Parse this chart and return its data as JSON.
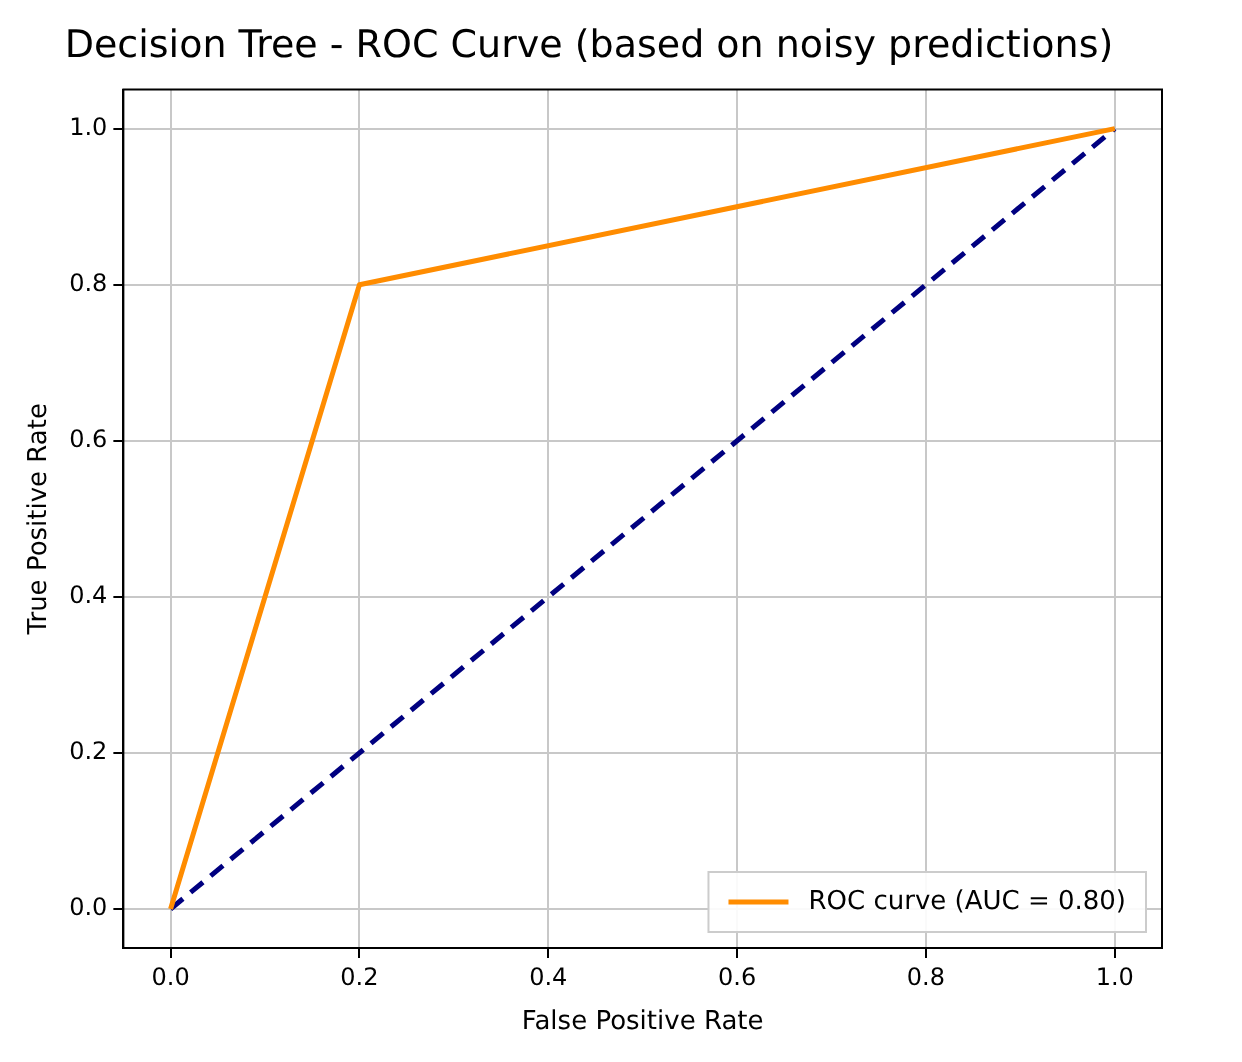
{
  "chart_data": {
    "type": "line",
    "title": "Decision Tree - ROC Curve (based on noisy predictions)",
    "xlabel": "False Positive Rate",
    "ylabel": "True Positive Rate",
    "series": [
      {
        "name": "ROC curve (AUC = 0.80)",
        "color": "#ff8c00",
        "x": [
          0,
          0.2,
          1
        ],
        "values": [
          0,
          0.8,
          1
        ],
        "line_style": "solid"
      },
      {
        "color": "#000080",
        "x": [
          0,
          1
        ],
        "values": [
          0,
          1
        ],
        "line_style": "dashed"
      }
    ],
    "xlim": [
      -0.05,
      1.05
    ],
    "ylim": [
      -0.05,
      1.05
    ],
    "xticks": [
      {
        "value": 0,
        "label": "0.0"
      },
      {
        "value": 0.2,
        "label": "0.2"
      },
      {
        "value": 0.4,
        "label": "0.4"
      },
      {
        "value": 0.6,
        "label": "0.6"
      },
      {
        "value": 0.8,
        "label": "0.8"
      },
      {
        "value": 1,
        "label": "1.0"
      }
    ],
    "yticks": [
      {
        "value": 0,
        "label": "0.0"
      },
      {
        "value": 0.2,
        "label": "0.2"
      },
      {
        "value": 0.4,
        "label": "0.4"
      },
      {
        "value": 0.6,
        "label": "0.6"
      },
      {
        "value": 0.8,
        "label": "0.8"
      },
      {
        "value": 1,
        "label": "1.0"
      }
    ],
    "grid": true,
    "legend": "bottom right",
    "marker": "none"
  }
}
